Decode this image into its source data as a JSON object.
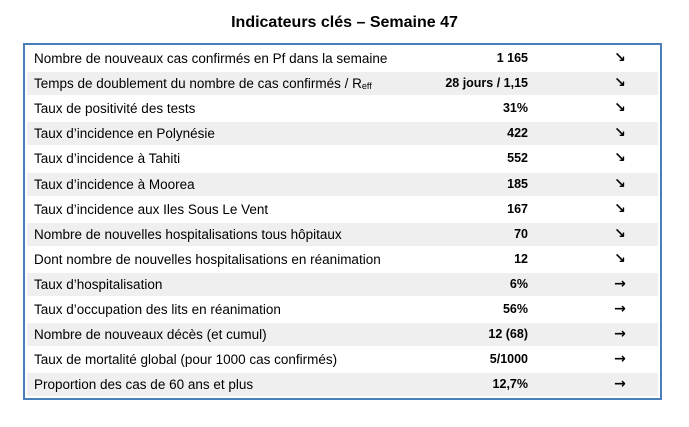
{
  "title": "Indicateurs clés – Semaine 47",
  "rows": [
    {
      "label": "Nombre de nouveaux cas confirmés en Pf dans la semaine",
      "value": "1 165",
      "trend": "↘"
    },
    {
      "label": "Temps de doublement du nombre de cas confirmés / R",
      "label_sub": "eff",
      "value": "28 jours / 1,15",
      "trend": "↘"
    },
    {
      "label": "Taux de positivité des tests",
      "value": "31%",
      "trend": "↘"
    },
    {
      "label": "Taux d’incidence en Polynésie",
      "value": "422",
      "trend": "↘"
    },
    {
      "label": "Taux d’incidence à Tahiti",
      "value": "552",
      "trend": "↘"
    },
    {
      "label": "Taux d’incidence à Moorea",
      "value": "185",
      "trend": "↘"
    },
    {
      "label": "Taux d’incidence aux Iles Sous Le Vent",
      "value": "167",
      "trend": "↘"
    },
    {
      "label": "Nombre de nouvelles hospitalisations tous hôpitaux",
      "value": "70",
      "trend": "↘"
    },
    {
      "label": "Dont nombre de nouvelles hospitalisations en réanimation",
      "value": "12",
      "trend": "↘"
    },
    {
      "label": "Taux d’hospitalisation",
      "value": "6%",
      "trend": "→"
    },
    {
      "label": "Taux d’occupation des lits en réanimation",
      "value": "56%",
      "trend": "→"
    },
    {
      "label": "Nombre de nouveaux décès (et cumul)",
      "value": "12 (68)",
      "trend": "→"
    },
    {
      "label": "Taux de mortalité global (pour 1000 cas confirmés)",
      "value": "5/1000",
      "trend": "→"
    },
    {
      "label": "Proportion des cas de 60 ans et plus",
      "value": "12,7%",
      "trend": "→"
    }
  ]
}
